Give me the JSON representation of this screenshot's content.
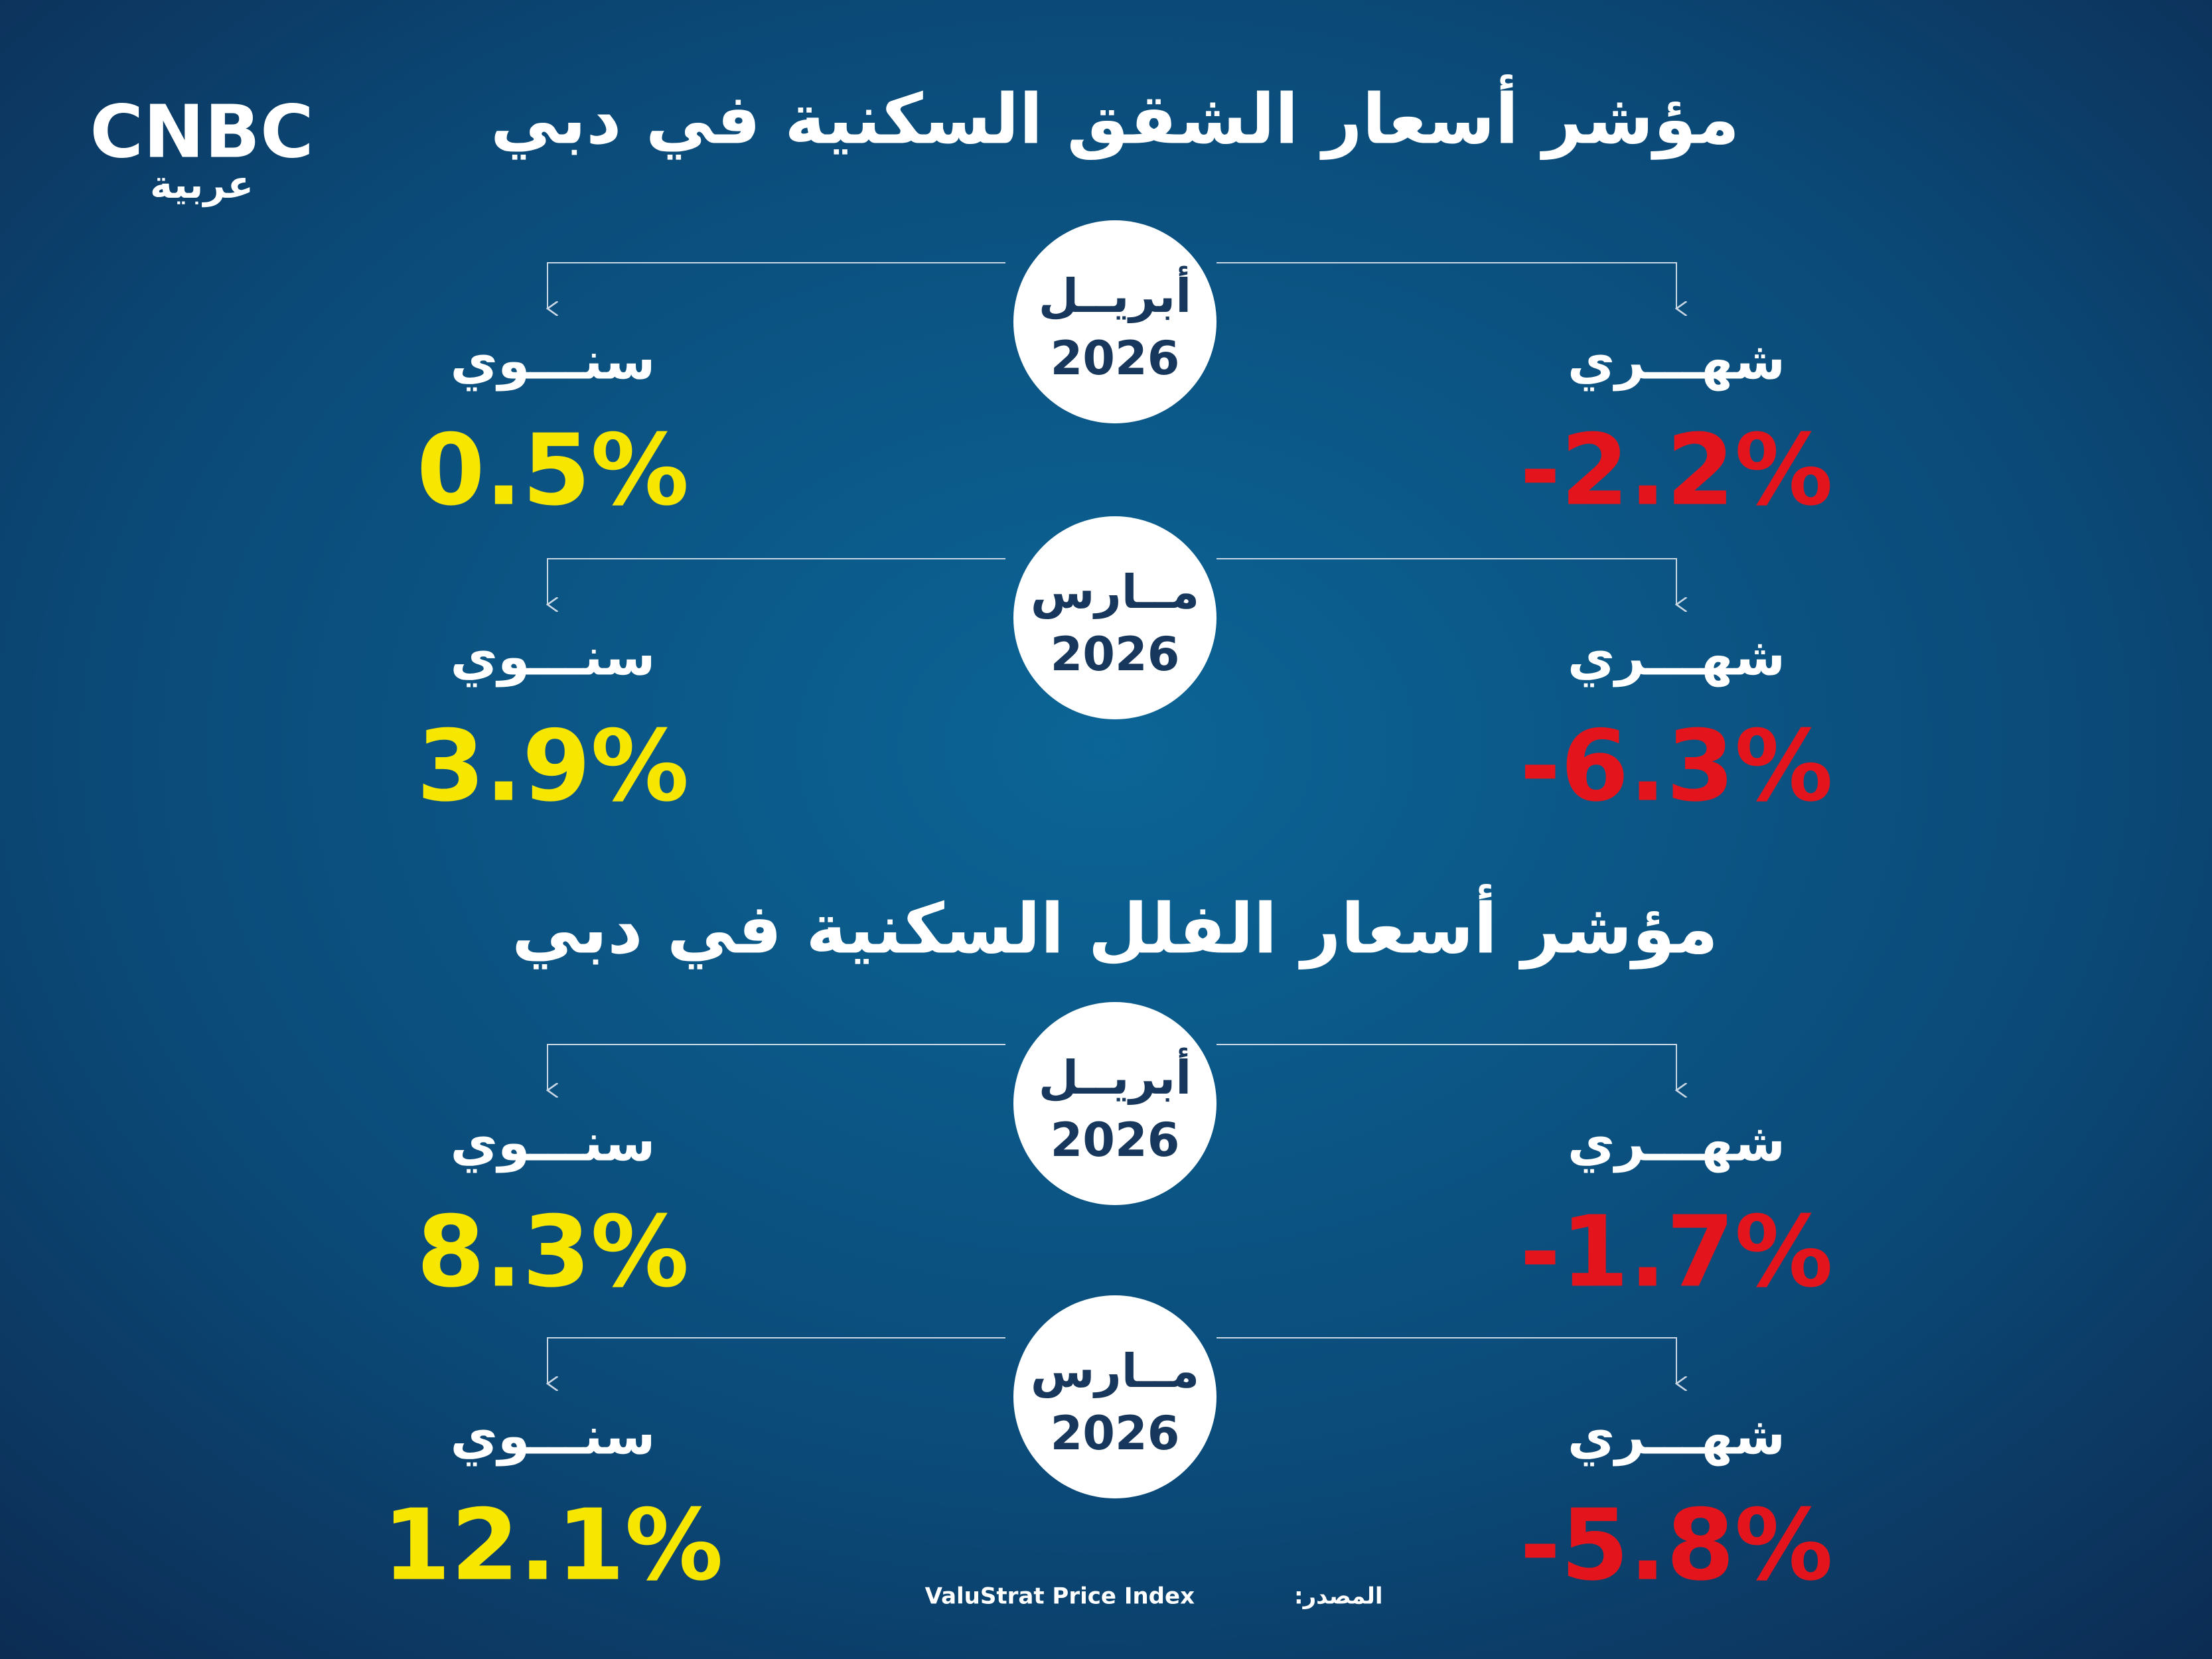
{
  "logo": {
    "name": "CNBC",
    "sub": "عربية"
  },
  "sections": [
    {
      "title": "مؤشر أسعار الشقق السكنية في دبي",
      "rows": [
        {
          "month": "أبريــل",
          "year": "2026",
          "monthly_label": "شهـــري",
          "monthly": "-2.2%",
          "annual_label": "سنـــوي",
          "annual": "0.5%"
        },
        {
          "month": "مــارس",
          "year": "2026",
          "monthly_label": "شهـــري",
          "monthly": "-6.3%",
          "annual_label": "سنـــوي",
          "annual": "3.9%"
        }
      ]
    },
    {
      "title": "مؤشر أسعار الفلل السكنية في دبي",
      "rows": [
        {
          "month": "أبريــل",
          "year": "2026",
          "monthly_label": "شهـــري",
          "monthly": "-1.7%",
          "annual_label": "سنـــوي",
          "annual": "8.3%"
        },
        {
          "month": "مــارس",
          "year": "2026",
          "monthly_label": "شهـــري",
          "monthly": "-5.8%",
          "annual_label": "سنـــوي",
          "annual": "12.1%"
        }
      ]
    }
  ],
  "source": {
    "label": "المصدر:",
    "text": "ValuStrat Price Index"
  }
}
